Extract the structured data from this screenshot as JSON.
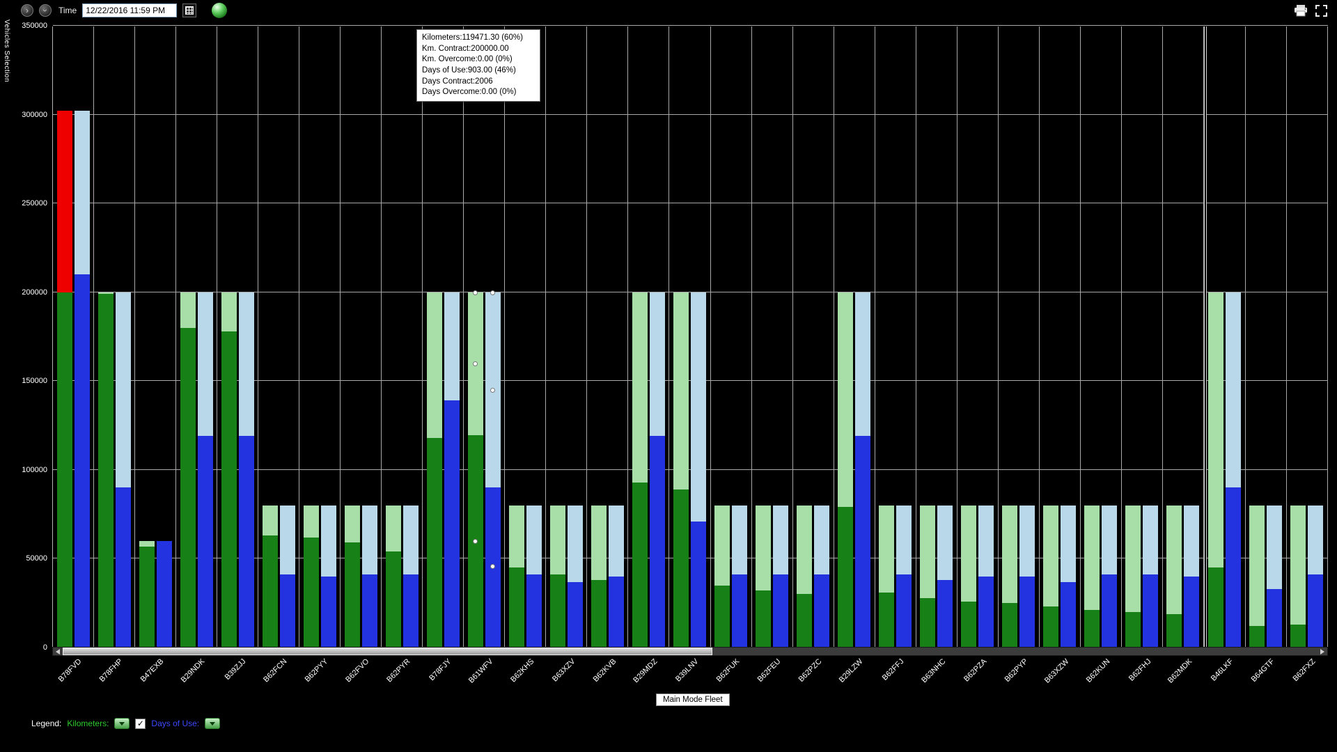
{
  "toolbar": {
    "time_label": "Time",
    "datetime_value": "12/22/2016 11:59 PM",
    "nav_glyph": "›"
  },
  "y_axis_title": "Vehicles Selection",
  "tooltip": {
    "lines": [
      "Kilometers:119471.30 (60%)",
      "Km. Contract:200000.00",
      "Km. Overcome:0.00 (0%)",
      "Days of Use:903.00 (46%)",
      "Days Contract:2006",
      "Days Overcome:0.00 (0%)"
    ]
  },
  "fleet_label": "Main Mode Fleet",
  "legend": {
    "label": "Legend:",
    "kilometers_label": "Kilometers:",
    "days_label": "Days of Use:",
    "check_glyph": "✓"
  },
  "colors": {
    "background": "#000000",
    "gridline": "#a9a9a9",
    "km_actual": "#178017",
    "km_contract": "#a8dfa8",
    "km_overcome": "#ee0000",
    "days_actual": "#2433e0",
    "days_contract": "#b9d9ea"
  },
  "chart_data": {
    "type": "bar",
    "title": "",
    "xlabel": "",
    "ylabel": "Vehicles Selection",
    "ylim": [
      0,
      350000
    ],
    "yticks": [
      0,
      50000,
      100000,
      150000,
      200000,
      250000,
      300000,
      350000
    ],
    "grid": true,
    "legend_position": "bottom",
    "categories": [
      "B78FVD",
      "B78FHP",
      "B47EXB",
      "B29NDK",
      "B39ZJJ",
      "B62FCN",
      "B62PYY",
      "B62FVO",
      "B62PYR",
      "B78FJY",
      "B61WFV",
      "B62KHS",
      "B63XZV",
      "B62KVB",
      "B29MDZ",
      "B39LNV",
      "B62FUK",
      "B62FEU",
      "B62PZC",
      "B29LZW",
      "B62FFJ",
      "B63NHC",
      "B62PZA",
      "B62PYP",
      "B63XZW",
      "B62KUN",
      "B62FHJ",
      "B62MDK",
      "B46LKF",
      "B64GTF",
      "B62FXZ"
    ],
    "series": [
      {
        "name": "Kilometers",
        "color": "#178017",
        "values": [
          200000,
          199000,
          57000,
          180000,
          178000,
          63000,
          62000,
          59000,
          54000,
          118000,
          119471.3,
          45000,
          41000,
          38000,
          93000,
          89000,
          35000,
          32000,
          30000,
          79000,
          31000,
          28000,
          26000,
          25000,
          23000,
          21000,
          20000,
          19000,
          45000,
          12000,
          13000
        ]
      },
      {
        "name": "Km. Contract",
        "color": "#a8dfa8",
        "values": [
          200000,
          200000,
          60000,
          200000,
          200000,
          80000,
          80000,
          80000,
          80000,
          200000,
          200000,
          80000,
          80000,
          80000,
          200000,
          200000,
          80000,
          80000,
          80000,
          200000,
          80000,
          80000,
          80000,
          80000,
          80000,
          80000,
          80000,
          80000,
          200000,
          80000,
          80000
        ]
      },
      {
        "name": "Km. Overcome",
        "color": "#ee0000",
        "values": [
          102000,
          0,
          0,
          0,
          0,
          0,
          0,
          0,
          0,
          0,
          0,
          0,
          0,
          0,
          0,
          0,
          0,
          0,
          0,
          0,
          0,
          0,
          0,
          0,
          0,
          0,
          0,
          0,
          0,
          0,
          0
        ]
      },
      {
        "name": "Days of Use",
        "color": "#2433e0",
        "values": [
          210000,
          90000,
          60000,
          119000,
          119000,
          41000,
          40000,
          41000,
          41000,
          139000,
          90000,
          41000,
          37000,
          40000,
          119000,
          71000,
          41000,
          41000,
          41000,
          119000,
          41000,
          38000,
          40000,
          40000,
          37000,
          41000,
          41000,
          40000,
          90000,
          33000,
          41000
        ]
      },
      {
        "name": "Days Contract",
        "color": "#b9d9ea",
        "values": [
          302000,
          200000,
          60000,
          200000,
          200000,
          80000,
          80000,
          80000,
          80000,
          200000,
          200000,
          80000,
          80000,
          80000,
          200000,
          200000,
          80000,
          80000,
          80000,
          200000,
          80000,
          80000,
          80000,
          80000,
          80000,
          80000,
          80000,
          80000,
          200000,
          80000,
          80000
        ]
      }
    ],
    "hover_markers": {
      "category_index": 10,
      "points": [
        {
          "bar": 0,
          "value": 200000
        },
        {
          "bar": 1,
          "value": 200000
        },
        {
          "bar": 0,
          "value": 160000
        },
        {
          "bar": 1,
          "value": 145000
        },
        {
          "bar": 0,
          "value": 60000
        },
        {
          "bar": 1,
          "value": 46000
        }
      ]
    },
    "split_index": 28
  }
}
